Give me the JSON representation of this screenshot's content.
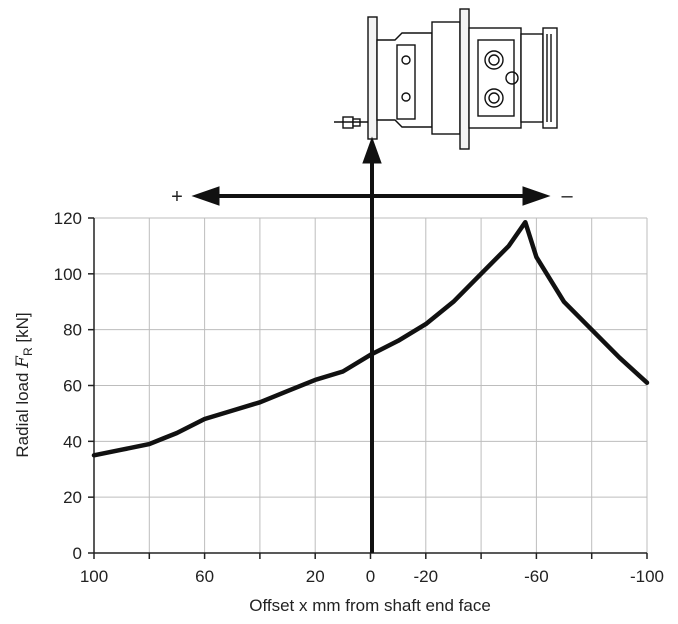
{
  "chart_data": {
    "type": "line",
    "title": "",
    "xlabel": "Offset x mm from shaft end face",
    "ylabel_main": "Radial load ",
    "ylabel_symbol": "F",
    "ylabel_subscript": "R",
    "ylabel_unit": " [kN]",
    "xlim": [
      100,
      -100
    ],
    "ylim": [
      0,
      120
    ],
    "x_ticks": [
      {
        "value": 100,
        "label": "100"
      },
      {
        "value": 60,
        "label": "60"
      },
      {
        "value": 20,
        "label": "20"
      },
      {
        "value": 0,
        "label": "0"
      },
      {
        "value": -20,
        "label": "-20"
      },
      {
        "value": -60,
        "label": "-60"
      },
      {
        "value": -100,
        "label": "-100"
      }
    ],
    "x_gridlines": [
      100,
      80,
      60,
      40,
      20,
      0,
      -20,
      -40,
      -60,
      -80,
      -100
    ],
    "y_ticks": [
      0,
      20,
      40,
      60,
      80,
      100,
      120
    ],
    "grid": true,
    "direction_plus_label": "+",
    "direction_minus_label": "–",
    "series": [
      {
        "x": [
          100,
          90,
          80,
          75,
          70,
          60,
          50,
          40,
          30,
          20,
          10,
          0,
          -10,
          -20,
          -30,
          -40,
          -50,
          -56,
          -60,
          -70,
          -80,
          -90,
          -100
        ],
        "y": [
          35,
          37,
          39,
          41,
          43,
          48,
          51,
          54,
          58,
          62,
          65,
          71,
          76,
          82,
          90,
          100,
          110,
          118.5,
          106,
          90,
          80,
          70,
          61
        ]
      }
    ],
    "colors": {
      "line": "#111111",
      "grid": "#bdbdbd",
      "axis": "#222222"
    }
  },
  "motor_icon": "hydraulic-motor-illustration"
}
